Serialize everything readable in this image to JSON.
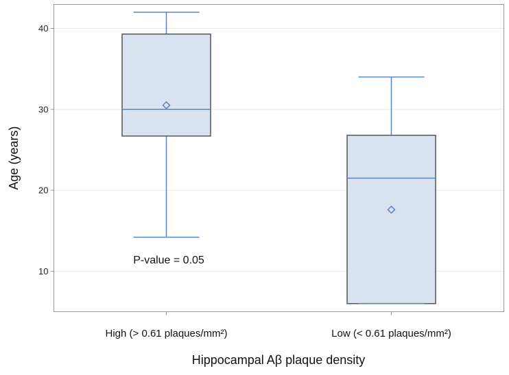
{
  "chart_data": {
    "type": "box",
    "title": "",
    "xlabel": "Hippocampal Aβ plaque density",
    "ylabel": "Age (years)",
    "ylim": [
      5,
      43
    ],
    "yticks": [
      10,
      20,
      30,
      40
    ],
    "grid": true,
    "categories": [
      "High (> 0.61 plaques/mm²)",
      "Low (< 0.61 plaques/mm²)"
    ],
    "boxes": [
      {
        "name": "High (> 0.61 plaques/mm²)",
        "whisker_low": 14.2,
        "q1": 26.7,
        "median": 30.0,
        "mean": 30.5,
        "q3": 39.3,
        "whisker_high": 42.0
      },
      {
        "name": "Low (< 0.61 plaques/mm²)",
        "whisker_low": 6.0,
        "q1": 6.0,
        "median": 21.5,
        "mean": 17.6,
        "q3": 26.8,
        "whisker_high": 34.0
      }
    ],
    "annotations": [
      "P-value = 0.05"
    ],
    "colors": {
      "box_fill": "#d9e3f0",
      "box_edge": "#555555",
      "whisker": "#5b84c4",
      "grid": "#e8e8e8",
      "frame": "#999999"
    }
  }
}
